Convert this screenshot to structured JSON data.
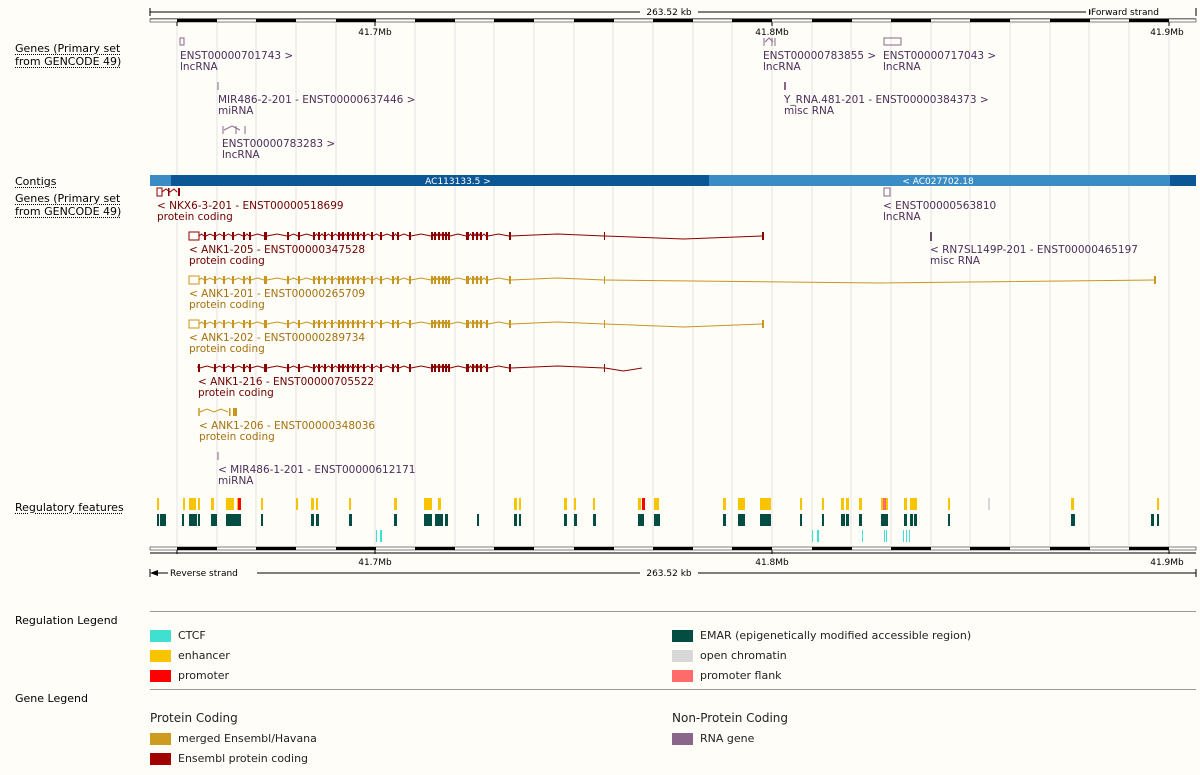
{
  "ruler": {
    "span_label": "263.52 kb",
    "forward_label": "Forward strand",
    "reverse_label": "Reverse strand",
    "ticks": [
      "41.7Mb",
      "41.8Mb",
      "41.9Mb"
    ]
  },
  "tracks": {
    "genes_forward_label_1": "Genes (Primary set",
    "genes_forward_label_2": "from GENCODE 49)",
    "contigs_label": "Contigs",
    "genes_reverse_label_1": "Genes (Primary set",
    "genes_reverse_label_2": "from GENCODE 49)",
    "regulatory_label": "Regulatory features"
  },
  "forward_genes": [
    {
      "name": "ENST00000701743 >",
      "biotype": "lncRNA"
    },
    {
      "name": "MIR486-2-201 - ENST00000637446 >",
      "biotype": "miRNA"
    },
    {
      "name": "ENST00000783283 >",
      "biotype": "lncRNA"
    },
    {
      "name": "ENST00000783855 >",
      "biotype": "lncRNA"
    },
    {
      "name": "ENST00000717043 >",
      "biotype": "lncRNA"
    },
    {
      "name": "Y_RNA.481-201 - ENST00000384373 >",
      "biotype": "misc RNA"
    }
  ],
  "contigs": [
    {
      "name": "AC113133.5 >"
    },
    {
      "name": "< AC027702.18"
    }
  ],
  "reverse_genes": [
    {
      "name": "< NKX6-3-201 - ENST00000518699",
      "biotype": "protein coding"
    },
    {
      "name": "< ANK1-205 - ENST00000347528",
      "biotype": "protein coding"
    },
    {
      "name": "< ANK1-201 - ENST00000265709",
      "biotype": "protein coding"
    },
    {
      "name": "< ANK1-202 - ENST00000289734",
      "biotype": "protein coding"
    },
    {
      "name": "< ANK1-216 - ENST00000705522",
      "biotype": "protein coding"
    },
    {
      "name": "< ANK1-206 - ENST00000348036",
      "biotype": "protein coding"
    },
    {
      "name": "< MIR486-1-201 - ENST00000612171",
      "biotype": "miRNA"
    },
    {
      "name": "< ENST00000563810",
      "biotype": "lncRNA"
    },
    {
      "name": "< RN7SL149P-201 - ENST00000465197",
      "biotype": "misc RNA"
    }
  ],
  "regulation_legend": {
    "title": "Regulation Legend",
    "items": [
      {
        "label": "CTCF",
        "color": "#40e0d0"
      },
      {
        "label": "enhancer",
        "color": "#f8c400"
      },
      {
        "label": "promoter",
        "color": "#ff0000"
      },
      {
        "label": "EMAR (epigenetically modified accessible region)",
        "color": "#034e40"
      },
      {
        "label": "open chromatin",
        "color": "#d8d8d8"
      },
      {
        "label": "promoter flank",
        "color": "#ff6a6a"
      }
    ]
  },
  "gene_legend": {
    "title": "Gene Legend",
    "protein_heading": "Protein Coding",
    "nonprotein_heading": "Non-Protein Coding",
    "items": [
      {
        "label": "merged Ensembl/Havana",
        "color": "#cd9b1d"
      },
      {
        "label": "Ensembl protein coding",
        "color": "#a00000"
      },
      {
        "label": "RNA gene",
        "color": "#8b668b"
      }
    ]
  },
  "colors": {
    "merged": "#c8961e",
    "ensembl_protein": "#8b0000",
    "rna_gene": "#4b2e5a",
    "contig_dark": "#0b5796",
    "contig_light": "#3a8cc4"
  }
}
